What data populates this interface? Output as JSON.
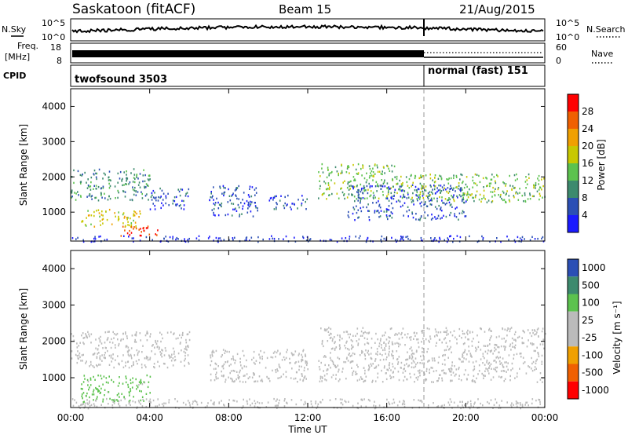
{
  "header": {
    "title": "Saskatoon (fitACF)",
    "beam": "Beam 15",
    "date": "21/Aug/2015"
  },
  "colors": {
    "power_scale": [
      "#1a1aff",
      "#2b4fb5",
      "#3d8a6e",
      "#5cc24e",
      "#c8c800",
      "#f0a000",
      "#f06000",
      "#ff0000"
    ],
    "velocity_scale": [
      "#ff0000",
      "#f06000",
      "#f0a000",
      "#bbbbbb",
      "#bbbbbb",
      "#5cc24e",
      "#3d8a6e",
      "#2b4fb5"
    ],
    "ground_scatter": "#bbbbbb"
  },
  "panels": {
    "nsky": {
      "label": "N.Sky",
      "left_ticks": [
        "10^5",
        "10^0"
      ],
      "right_ticks": [
        "10^5",
        "10^0"
      ],
      "right_label": "N.Search"
    },
    "freq": {
      "label_line1": "Freq.",
      "label_line2": "[MHz]",
      "left_ticks": [
        "18",
        "8"
      ],
      "right_ticks": [
        "60",
        "0"
      ],
      "right_label": "Nave"
    },
    "cpid": {
      "label": "CPID",
      "segment1": "twofsound 3503",
      "segment2": "normal (fast) 151"
    },
    "power": {
      "ylabel": "Slant Range [km]",
      "colorbar_label": "Power [dB]",
      "colorbar_ticks": [
        "28",
        "24",
        "20",
        "16",
        "12",
        "8",
        "4"
      ]
    },
    "velocity": {
      "ylabel": "Slant Range [km]",
      "colorbar_label": "Velocity [m s⁻¹]",
      "colorbar_ticks": [
        "1000",
        "500",
        "100",
        "25",
        "-25",
        "-100",
        "-500",
        "-1000"
      ]
    }
  },
  "chart_data": {
    "type": "heatmap",
    "title": "Saskatoon (fitACF)",
    "xlabel": "Time UT",
    "ylabel": "Slant Range [km]",
    "x_ticks": [
      "00:00",
      "04:00",
      "08:00",
      "12:00",
      "16:00",
      "20:00",
      "00:00"
    ],
    "y_ticks": [
      "1000",
      "2000",
      "3000",
      "4000"
    ],
    "xlim_hours": [
      0,
      24
    ],
    "ylim_km": [
      180,
      4500
    ],
    "mode_change_hour": 18,
    "power_regions": [
      {
        "t0": 0.0,
        "t1": 4.0,
        "r0": 1350,
        "r1": 2250,
        "db": 10
      },
      {
        "t0": 0.5,
        "t1": 3.5,
        "r0": 600,
        "r1": 1100,
        "db": 18
      },
      {
        "t0": 2.5,
        "t1": 4.5,
        "r0": 350,
        "r1": 650,
        "db": 28
      },
      {
        "t0": 4.0,
        "t1": 6.0,
        "r0": 1100,
        "r1": 1700,
        "db": 6
      },
      {
        "t0": 7.0,
        "t1": 9.5,
        "r0": 900,
        "r1": 1800,
        "db": 6
      },
      {
        "t0": 10.0,
        "t1": 12.0,
        "r0": 1100,
        "r1": 1500,
        "db": 6
      },
      {
        "t0": 12.5,
        "t1": 16.5,
        "r0": 1400,
        "r1": 2400,
        "db": 14
      },
      {
        "t0": 14.0,
        "t1": 20.0,
        "r0": 800,
        "r1": 1800,
        "db": 6
      },
      {
        "t0": 16.5,
        "t1": 24.0,
        "r0": 1300,
        "r1": 2100,
        "db": 14
      },
      {
        "t0": 0.0,
        "t1": 24.0,
        "r0": 180,
        "r1": 350,
        "db": 4
      }
    ],
    "velocity_regions": [
      {
        "t0": 0.5,
        "t1": 4.0,
        "r0": 350,
        "r1": 1100,
        "ms": 60,
        "ground": false
      },
      {
        "t0": 0.0,
        "t1": 24.0,
        "r0": 180,
        "r1": 450,
        "ms": -60,
        "ground": false
      },
      {
        "t0": 0.0,
        "t1": 6.0,
        "r0": 1300,
        "r1": 2300,
        "ms": 0,
        "ground": true
      },
      {
        "t0": 7.0,
        "t1": 12.0,
        "r0": 900,
        "r1": 1800,
        "ms": 0,
        "ground": true
      },
      {
        "t0": 12.5,
        "t1": 24.0,
        "r0": 900,
        "r1": 2400,
        "ms": 0,
        "ground": true
      }
    ]
  }
}
